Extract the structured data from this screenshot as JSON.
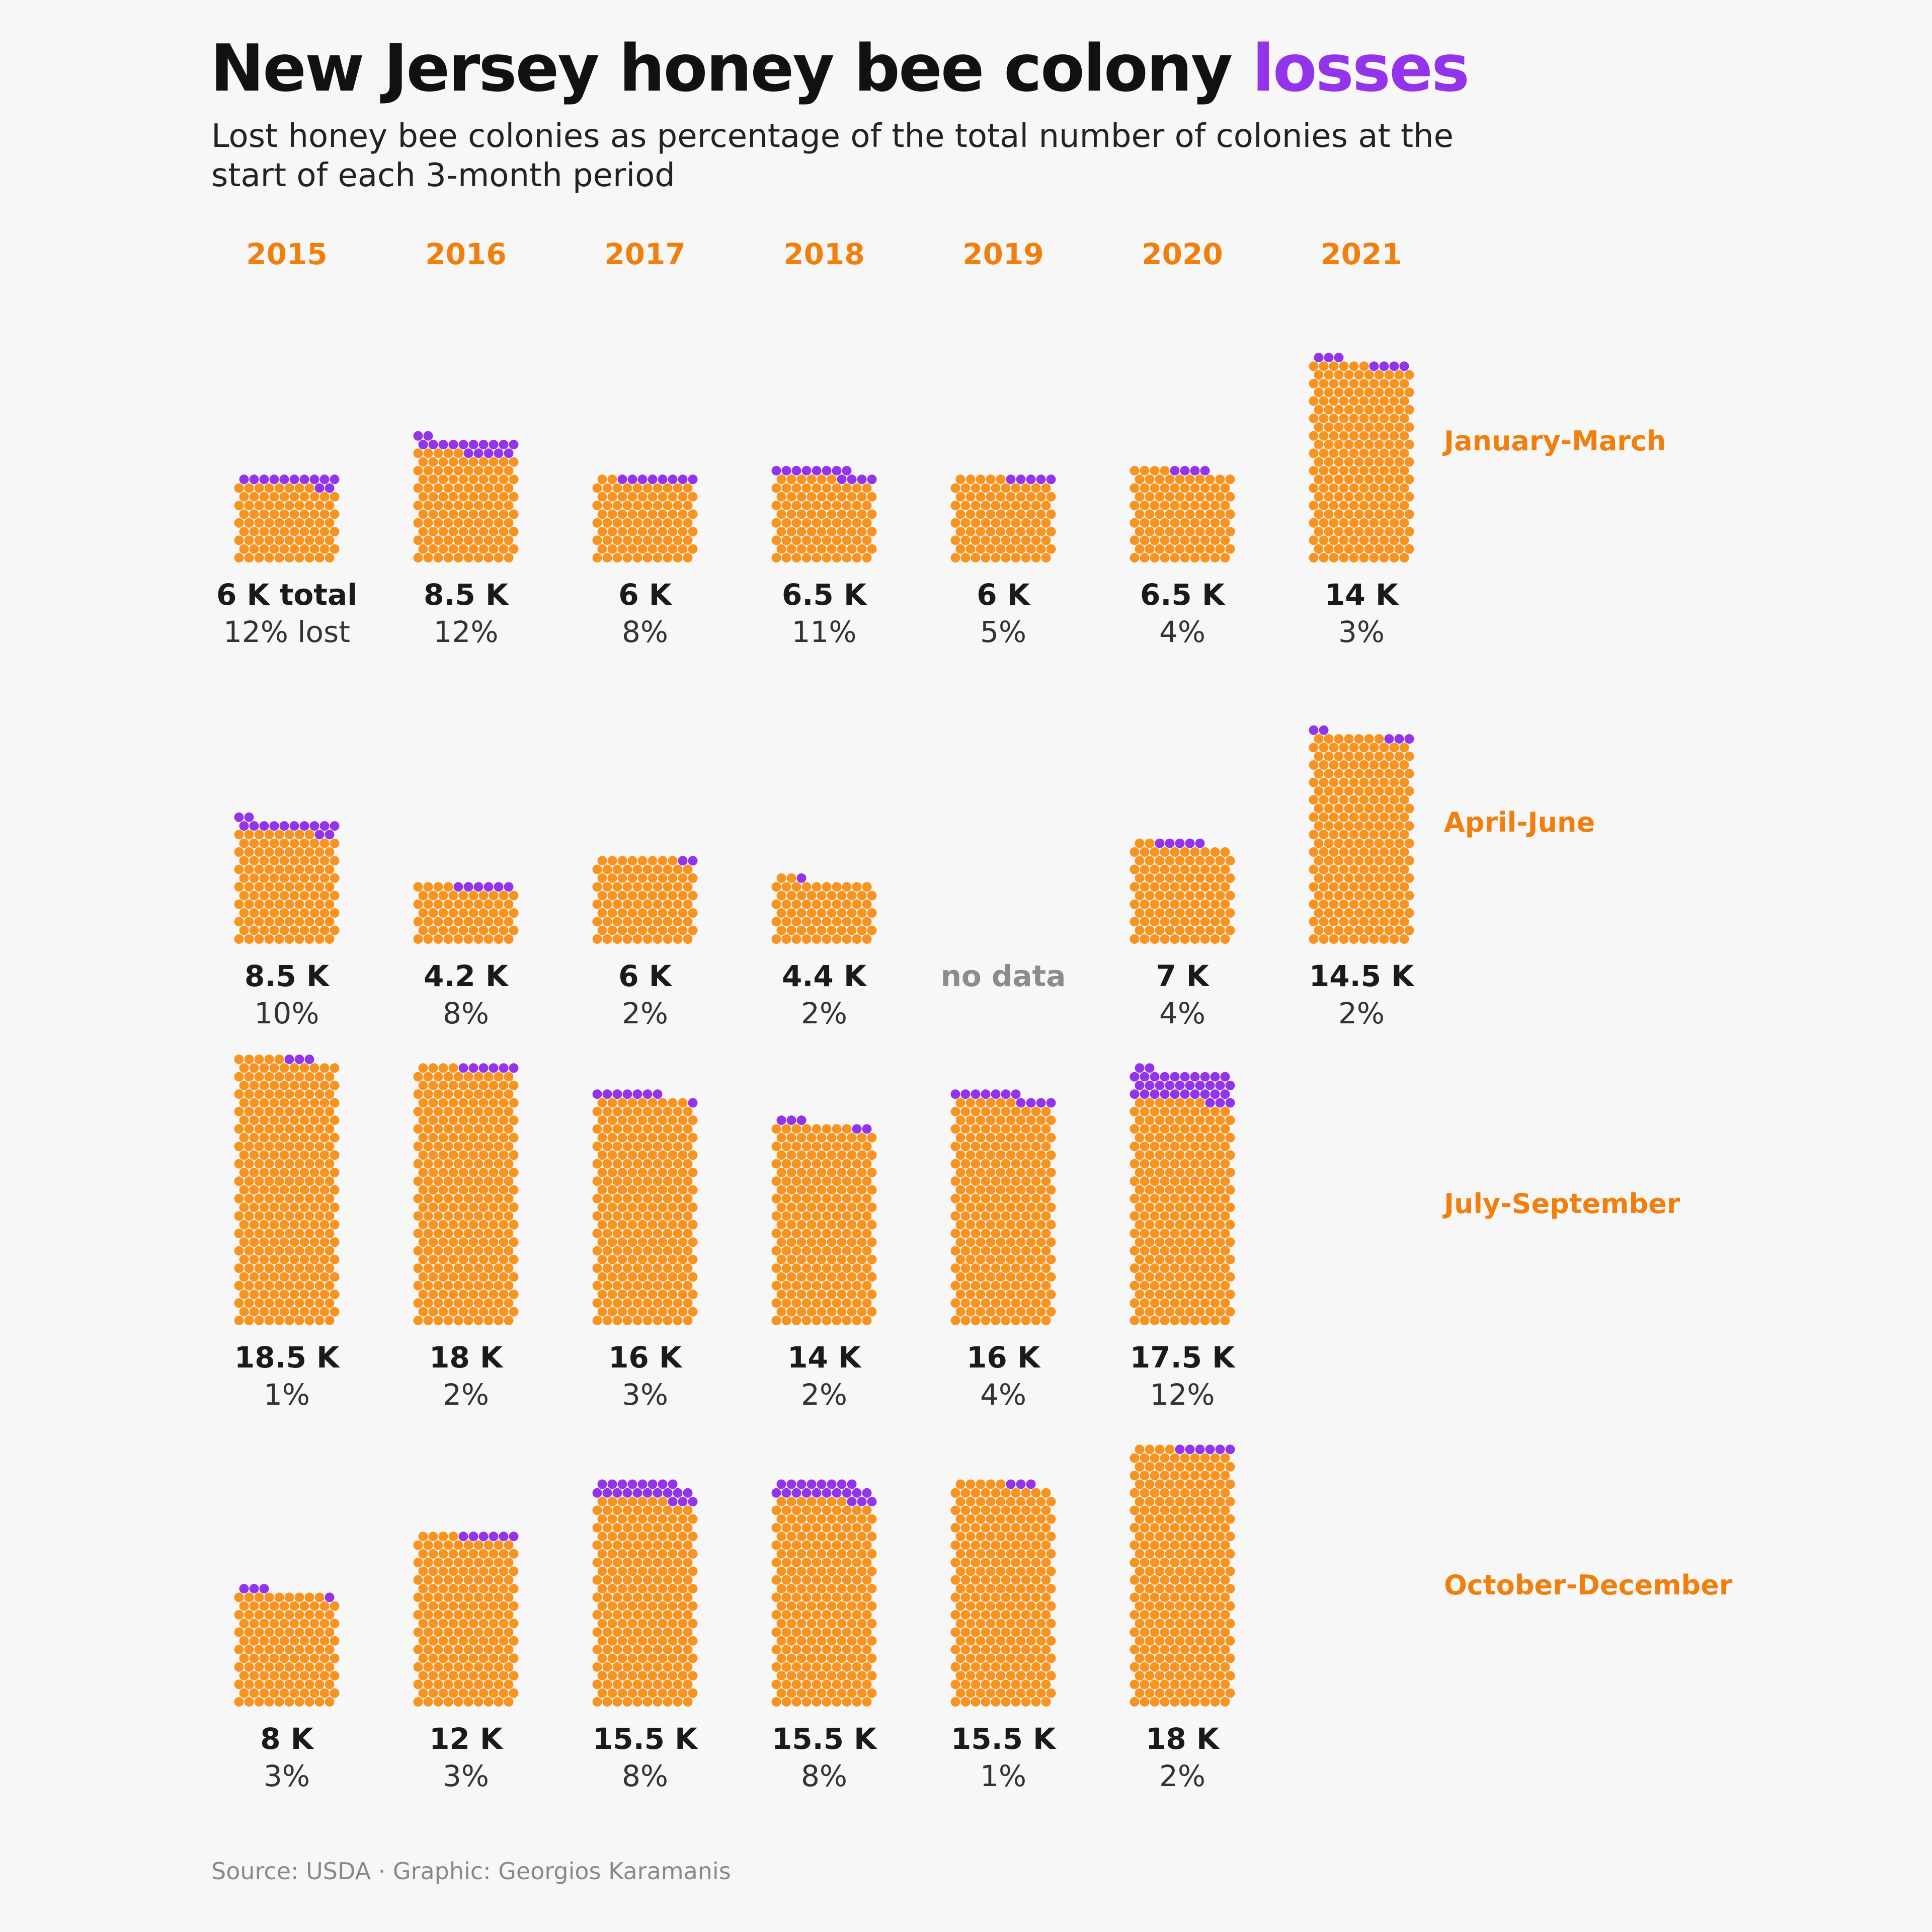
{
  "title": {
    "main": "New Jersey honey bee colony ",
    "highlight": "losses"
  },
  "subtitle": "Lost honey bee colonies as percentage of the total number of colonies at the start of each 3-month period",
  "source": "Source: USDA · Graphic: Georgios Karamanis",
  "colors": {
    "remaining": "#f7931e",
    "lost": "#9333ea",
    "year": "#f07f0e",
    "quarter": "#f07f0e",
    "value": "#1a1a1a",
    "nodata": "#8c8c8c",
    "background": "#f7f7f7"
  },
  "chart_data": {
    "type": "waffle",
    "unit": "colonies (each dot ≈ 60)",
    "years": [
      "2015",
      "2016",
      "2017",
      "2018",
      "2019",
      "2020",
      "2021"
    ],
    "quarters": [
      "January-March",
      "April-June",
      "July-September",
      "October-December"
    ],
    "no_data_label": "no data",
    "cells": [
      [
        {
          "total": 6000,
          "total_label": "6 K total",
          "pct": 12,
          "pct_label": "12% lost"
        },
        {
          "total": 8500,
          "total_label": "8.5 K",
          "pct": 12,
          "pct_label": "12%"
        },
        {
          "total": 6000,
          "total_label": "6 K",
          "pct": 8,
          "pct_label": "8%"
        },
        {
          "total": 6500,
          "total_label": "6.5 K",
          "pct": 11,
          "pct_label": "11%"
        },
        {
          "total": 6000,
          "total_label": "6 K",
          "pct": 5,
          "pct_label": "5%"
        },
        {
          "total": 6500,
          "total_label": "6.5 K",
          "pct": 4,
          "pct_label": "4%"
        },
        {
          "total": 14000,
          "total_label": "14 K",
          "pct": 3,
          "pct_label": "3%"
        }
      ],
      [
        {
          "total": 8500,
          "total_label": "8.5 K",
          "pct": 10,
          "pct_label": "10%"
        },
        {
          "total": 4200,
          "total_label": "4.2 K",
          "pct": 8,
          "pct_label": "8%"
        },
        {
          "total": 6000,
          "total_label": "6 K",
          "pct": 2,
          "pct_label": "2%"
        },
        {
          "total": 4400,
          "total_label": "4.4 K",
          "pct": 2,
          "pct_label": "2%"
        },
        null,
        {
          "total": 7000,
          "total_label": "7 K",
          "pct": 4,
          "pct_label": "4%"
        },
        {
          "total": 14500,
          "total_label": "14.5 K",
          "pct": 2,
          "pct_label": "2%"
        }
      ],
      [
        {
          "total": 18500,
          "total_label": "18.5 K",
          "pct": 1,
          "pct_label": "1%"
        },
        {
          "total": 18000,
          "total_label": "18 K",
          "pct": 2,
          "pct_label": "2%"
        },
        {
          "total": 16000,
          "total_label": "16 K",
          "pct": 3,
          "pct_label": "3%"
        },
        {
          "total": 14000,
          "total_label": "14 K",
          "pct": 2,
          "pct_label": "2%"
        },
        {
          "total": 16000,
          "total_label": "16 K",
          "pct": 4,
          "pct_label": "4%"
        },
        {
          "total": 17500,
          "total_label": "17.5 K",
          "pct": 12,
          "pct_label": "12%"
        },
        null
      ],
      [
        {
          "total": 8000,
          "total_label": "8 K",
          "pct": 3,
          "pct_label": "3%"
        },
        {
          "total": 12000,
          "total_label": "12 K",
          "pct": 3,
          "pct_label": "3%"
        },
        {
          "total": 15500,
          "total_label": "15.5 K",
          "pct": 8,
          "pct_label": "8%"
        },
        {
          "total": 15500,
          "total_label": "15.5 K",
          "pct": 8,
          "pct_label": "8%"
        },
        {
          "total": 15500,
          "total_label": "15.5 K",
          "pct": 1,
          "pct_label": "1%"
        },
        {
          "total": 18000,
          "total_label": "18 K",
          "pct": 2,
          "pct_label": "2%"
        },
        null
      ]
    ]
  }
}
